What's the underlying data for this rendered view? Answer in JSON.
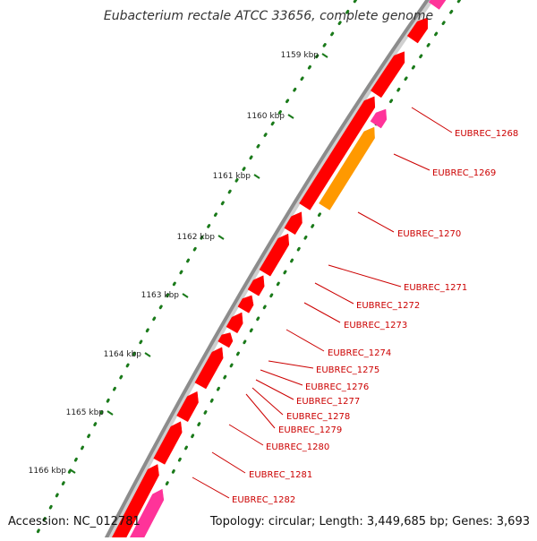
{
  "title": "Eubacterium rectale ATCC 33656, complete genome",
  "accession_text": "Accession: NC_012781",
  "topology_text": "Topology: circular; Length: 3,449,685 bp; Genes: 3,693",
  "colors": {
    "backbone": "#8c8c8c",
    "gene_forward": "#ff0000",
    "gene_highlight": "#ff3399",
    "gene_orange": "#ff9900",
    "tick": "#1a7a1a",
    "label": "#cc0000",
    "label_line": "#cc0000"
  },
  "ruler": [
    {
      "label": "1159 kbp",
      "value": 1159
    },
    {
      "label": "1160 kbp",
      "value": 1160
    },
    {
      "label": "1161 kbp",
      "value": 1161
    },
    {
      "label": "1162 kbp",
      "value": 1162
    },
    {
      "label": "1163 kbp",
      "value": 1163
    },
    {
      "label": "1164 kbp",
      "value": 1164
    },
    {
      "label": "1165 kbp",
      "value": 1165
    },
    {
      "label": "1166 kbp",
      "value": 1166
    }
  ],
  "gene_labels": [
    "EUBREC_1268",
    "EUBREC_1269",
    "EUBREC_1270",
    "EUBREC_1271",
    "EUBREC_1272",
    "EUBREC_1273",
    "EUBREC_1274",
    "EUBREC_1275",
    "EUBREC_1276",
    "EUBREC_1277",
    "EUBREC_1278",
    "EUBREC_1279",
    "EUBREC_1280",
    "EUBREC_1281",
    "EUBREC_1282"
  ]
}
